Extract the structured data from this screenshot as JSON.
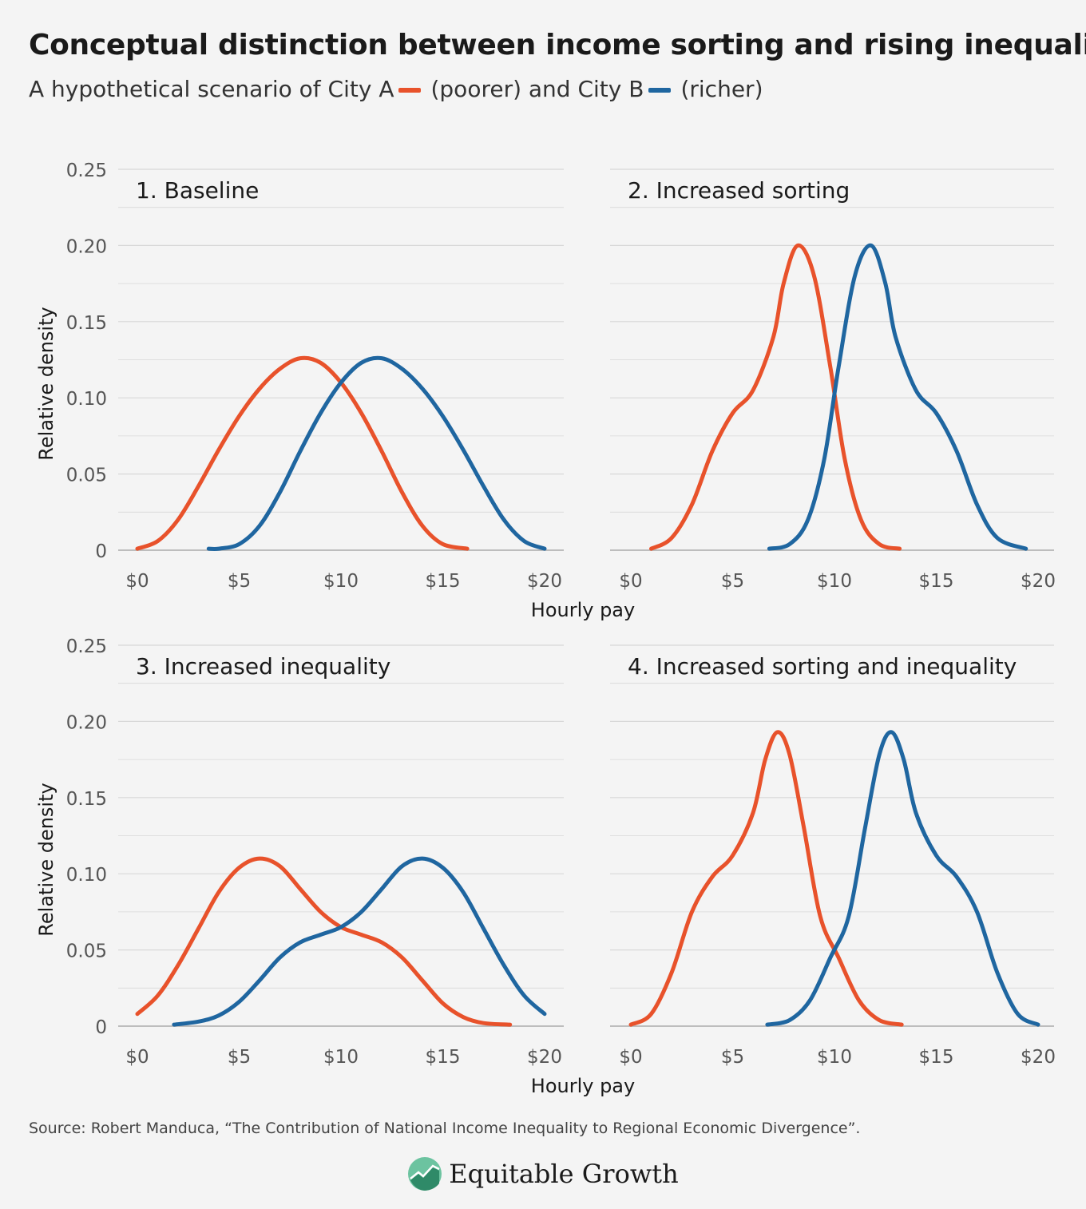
{
  "title": "Conceptual distinction between income sorting and rising inequality",
  "subtitle": {
    "prefix": "A hypothetical scenario of City A",
    "city_a_label": "(poorer) and City B",
    "city_b_label": "(richer)"
  },
  "colors": {
    "city_a": "#e8522b",
    "city_b": "#1f66a0",
    "grid": "#d8d8d8",
    "axis": "#bdbdbd"
  },
  "source": "Source: Robert Manduca, “The Contribution of National Income Inequality to Regional Economic Divergence”.",
  "brand": {
    "name": "Equitable Growth",
    "logo_icon": "growth-chart-logo-icon"
  },
  "chart_data": [
    {
      "type": "line",
      "title": "1. Baseline",
      "xlabel": "Hourly pay",
      "ylabel": "Relative density",
      "xlim": [
        0,
        20
      ],
      "ylim": [
        0,
        0.25
      ],
      "xticks": [
        0,
        5,
        10,
        15,
        20
      ],
      "xtick_labels": [
        "$0",
        "$5",
        "$10",
        "$15",
        "$20"
      ],
      "yticks": [
        0,
        0.05,
        0.1,
        0.15,
        0.2,
        0.25
      ],
      "ytick_labels": [
        "0",
        "0.05",
        "0.10",
        "0.15",
        "0.20",
        "0.25"
      ],
      "grid": true,
      "series": [
        {
          "key": "city_a",
          "x": [
            0,
            1,
            2,
            3,
            4,
            5,
            6,
            7,
            8,
            9,
            10,
            11,
            12,
            13,
            14,
            15,
            16.2
          ],
          "y": [
            0.001,
            0.006,
            0.02,
            0.042,
            0.066,
            0.088,
            0.106,
            0.119,
            0.126,
            0.123,
            0.11,
            0.09,
            0.065,
            0.038,
            0.016,
            0.004,
            0.001
          ]
        },
        {
          "key": "city_b",
          "x": [
            3.5,
            4,
            5,
            6,
            7,
            8,
            9,
            10,
            11,
            12,
            13,
            14,
            15,
            16,
            17,
            18,
            19,
            20
          ],
          "y": [
            0.001,
            0.001,
            0.004,
            0.016,
            0.038,
            0.065,
            0.09,
            0.11,
            0.123,
            0.126,
            0.119,
            0.106,
            0.088,
            0.066,
            0.042,
            0.02,
            0.006,
            0.001
          ]
        }
      ]
    },
    {
      "type": "line",
      "title": "2. Increased sorting",
      "xlabel": "Hourly pay",
      "ylabel": "",
      "xlim": [
        0,
        20
      ],
      "ylim": [
        0,
        0.25
      ],
      "xticks": [
        0,
        5,
        10,
        15,
        20
      ],
      "xtick_labels": [
        "$0",
        "$5",
        "$10",
        "$15",
        "$20"
      ],
      "yticks": [
        0,
        0.05,
        0.1,
        0.15,
        0.2,
        0.25
      ],
      "ytick_labels": [],
      "grid": true,
      "series": [
        {
          "key": "city_a",
          "x": [
            1,
            2,
            3,
            4,
            5,
            6,
            7,
            7.5,
            8.2,
            9,
            9.8,
            10.5,
            11.3,
            12.2,
            13.2
          ],
          "y": [
            0.001,
            0.008,
            0.03,
            0.065,
            0.09,
            0.105,
            0.14,
            0.175,
            0.2,
            0.18,
            0.12,
            0.06,
            0.02,
            0.004,
            0.001
          ]
        },
        {
          "key": "city_b",
          "x": [
            6.8,
            7.8,
            8.7,
            9.5,
            10.2,
            11,
            11.8,
            12.5,
            13,
            14,
            15,
            16,
            17,
            18,
            19.4
          ],
          "y": [
            0.001,
            0.004,
            0.02,
            0.06,
            0.12,
            0.18,
            0.2,
            0.175,
            0.14,
            0.105,
            0.09,
            0.065,
            0.03,
            0.008,
            0.001
          ]
        }
      ]
    },
    {
      "type": "line",
      "title": "3. Increased inequality",
      "xlabel": "Hourly pay",
      "ylabel": "Relative density",
      "xlim": [
        0,
        20
      ],
      "ylim": [
        0,
        0.25
      ],
      "xticks": [
        0,
        5,
        10,
        15,
        20
      ],
      "xtick_labels": [
        "$0",
        "$5",
        "$10",
        "$15",
        "$20"
      ],
      "yticks": [
        0,
        0.05,
        0.1,
        0.15,
        0.2,
        0.25
      ],
      "ytick_labels": [
        "0",
        "0.05",
        "0.10",
        "0.15",
        "0.20",
        "0.25"
      ],
      "grid": true,
      "series": [
        {
          "key": "city_a",
          "x": [
            0,
            1,
            2,
            3,
            4,
            5,
            6,
            7,
            8,
            9,
            10,
            11,
            12,
            13,
            14,
            15,
            16,
            17,
            18.3
          ],
          "y": [
            0.008,
            0.02,
            0.04,
            0.064,
            0.088,
            0.104,
            0.11,
            0.105,
            0.09,
            0.075,
            0.065,
            0.06,
            0.055,
            0.045,
            0.03,
            0.015,
            0.006,
            0.002,
            0.001
          ]
        },
        {
          "key": "city_b",
          "x": [
            1.8,
            3,
            4,
            5,
            6,
            7,
            8,
            9,
            10,
            11,
            12,
            13,
            14,
            15,
            16,
            17,
            18,
            19,
            20
          ],
          "y": [
            0.001,
            0.003,
            0.007,
            0.016,
            0.03,
            0.045,
            0.055,
            0.06,
            0.065,
            0.075,
            0.09,
            0.105,
            0.11,
            0.104,
            0.088,
            0.064,
            0.04,
            0.02,
            0.008
          ]
        }
      ]
    },
    {
      "type": "line",
      "title": "4. Increased sorting and inequality",
      "xlabel": "Hourly pay",
      "ylabel": "",
      "xlim": [
        0,
        20
      ],
      "ylim": [
        0,
        0.25
      ],
      "xticks": [
        0,
        5,
        10,
        15,
        20
      ],
      "xtick_labels": [
        "$0",
        "$5",
        "$10",
        "$15",
        "$20"
      ],
      "yticks": [
        0,
        0.05,
        0.1,
        0.15,
        0.2,
        0.25
      ],
      "ytick_labels": [],
      "grid": true,
      "series": [
        {
          "key": "city_a",
          "x": [
            0,
            1,
            2,
            3,
            4,
            5,
            6,
            6.6,
            7.2,
            7.8,
            8.5,
            9.3,
            10.2,
            11.2,
            12.2,
            13.3
          ],
          "y": [
            0.001,
            0.008,
            0.035,
            0.075,
            0.098,
            0.112,
            0.14,
            0.175,
            0.193,
            0.178,
            0.13,
            0.072,
            0.045,
            0.017,
            0.004,
            0.001
          ]
        },
        {
          "key": "city_b",
          "x": [
            6.7,
            7.8,
            8.8,
            9.8,
            10.7,
            11.5,
            12.2,
            12.8,
            13.4,
            14,
            15,
            16,
            17,
            18,
            19,
            20
          ],
          "y": [
            0.001,
            0.004,
            0.017,
            0.045,
            0.072,
            0.13,
            0.178,
            0.193,
            0.175,
            0.14,
            0.112,
            0.098,
            0.075,
            0.035,
            0.008,
            0.001
          ]
        }
      ]
    }
  ]
}
